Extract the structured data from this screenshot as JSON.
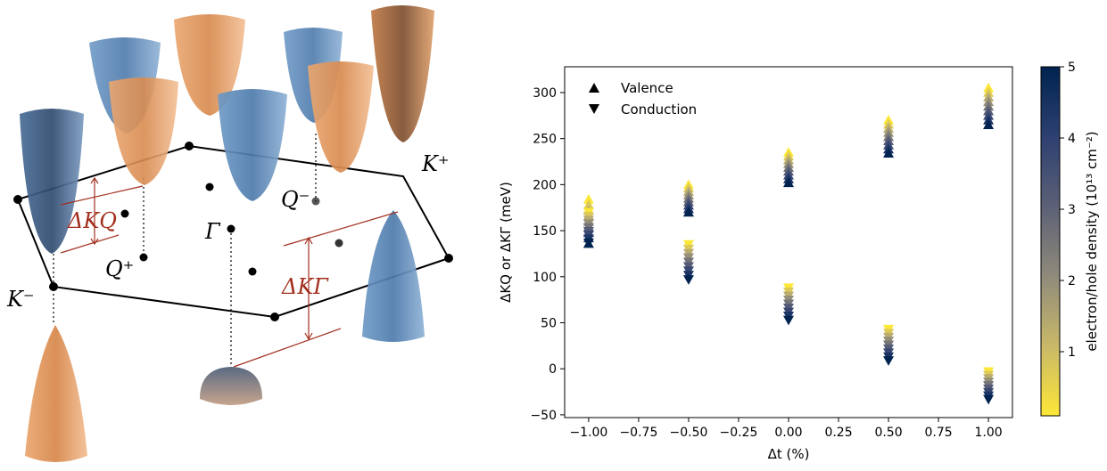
{
  "diagram": {
    "labels": {
      "k_plus": "K⁺",
      "k_minus": "K⁻",
      "q_plus": "Q⁺",
      "q_minus": "Q⁻",
      "gamma": "Γ",
      "delta_kq": "ΔKQ",
      "delta_kgamma": "ΔKΓ"
    },
    "colors": {
      "blue_band": "#5b86b5",
      "orange_band": "#e0975d",
      "annotation": "#a3301f",
      "outline": "#000000"
    }
  },
  "chart_data": {
    "type": "scatter",
    "xlabel": "Δt (%)",
    "ylabel": "ΔKQ or ΔKΓ (meV)",
    "xlim": [
      -1.12,
      1.12
    ],
    "ylim": [
      -53,
      328
    ],
    "xticks": [
      -1.0,
      -0.75,
      -0.5,
      -0.25,
      0.0,
      0.25,
      0.5,
      0.75,
      1.0
    ],
    "xtick_labels": [
      "−1.00",
      "−0.75",
      "−0.50",
      "−0.25",
      "0.00",
      "0.25",
      "0.50",
      "0.75",
      "1.00"
    ],
    "yticks": [
      -50,
      0,
      50,
      100,
      150,
      200,
      250,
      300
    ],
    "ytick_labels": [
      "−50",
      "0",
      "50",
      "100",
      "150",
      "200",
      "250",
      "300"
    ],
    "legend": {
      "placement": "top-left",
      "entries": [
        {
          "label": "Valence",
          "marker": "triangle-up"
        },
        {
          "label": "Conduction",
          "marker": "triangle-down"
        }
      ]
    },
    "colorbar": {
      "label": "electron/hole density (10¹³ cm⁻²)",
      "range": [
        0.1,
        5
      ],
      "ticks": [
        1,
        2,
        3,
        4,
        5
      ],
      "colormap": "cividis",
      "colors": [
        "#fde737",
        "#c9b869",
        "#8f8a7a",
        "#5c6076",
        "#2d4071",
        "#002350"
      ]
    },
    "x": [
      -1.0,
      -0.5,
      0.0,
      0.5,
      1.0
    ],
    "series": [
      {
        "name": "Valence",
        "marker": "triangle-up",
        "low_density": [
          184,
          200,
          235,
          270,
          305
        ],
        "high_density": [
          136,
          170,
          202,
          234,
          265
        ]
      },
      {
        "name": "Conduction",
        "marker": "triangle-down",
        "low_density": [
          170,
          135,
          88,
          43,
          -3
        ],
        "high_density": [
          137,
          97,
          53,
          9,
          -33
        ]
      }
    ],
    "density_levels": 9,
    "grid": false
  }
}
